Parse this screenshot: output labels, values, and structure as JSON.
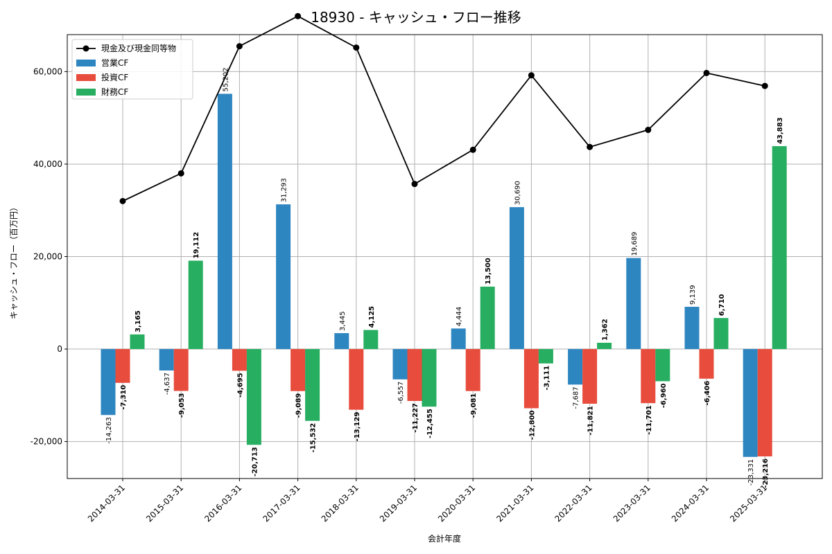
{
  "chart_data": {
    "type": "bar",
    "title": "18930 - キャッシュ・フロー推移",
    "xlabel": "会計年度",
    "ylabel": "キャッシュ・フロー（百万円）",
    "ylim": [
      -28000,
      68000
    ],
    "yticks": [
      -20000,
      0,
      20000,
      40000,
      60000
    ],
    "ytick_labels": [
      "-20,000",
      "0",
      "20,000",
      "40,000",
      "60,000"
    ],
    "grid": true,
    "legend_position": "top-left",
    "categories": [
      "2014-03-31",
      "2015-03-31",
      "2016-03-31",
      "2017-03-31",
      "2018-03-31",
      "2019-03-31",
      "2020-03-31",
      "2021-03-31",
      "2022-03-31",
      "2023-03-31",
      "2024-03-31",
      "2025-03-31"
    ],
    "series": [
      {
        "name": "営業CF",
        "type": "bar",
        "color": "#2e86c1",
        "values": [
          -14263,
          -4637,
          55202,
          31293,
          3445,
          -6557,
          4444,
          30690,
          -7687,
          19689,
          9139,
          -23331
        ],
        "labels": [
          "-14,263",
          "-4,637",
          "55,202",
          "31,293",
          "3,445",
          "-6,557",
          "4,444",
          "30,690",
          "-7,687",
          "19,689",
          "9,139",
          "-23,331"
        ]
      },
      {
        "name": "投資CF",
        "type": "bar",
        "color": "#e74c3c",
        "values": [
          -7310,
          -9053,
          -4695,
          -9089,
          -13129,
          -11227,
          -9081,
          -12800,
          -11821,
          -11701,
          -6406,
          -23216
        ],
        "labels": [
          "-7,310",
          "-9,053",
          "-4,695",
          "-9,089",
          "-13,129",
          "-11,227",
          "-9,081",
          "-12,800",
          "-11,821",
          "-11,701",
          "-6,406",
          "-23,216"
        ]
      },
      {
        "name": "財務CF",
        "type": "bar",
        "color": "#27ae60",
        "values": [
          3165,
          19112,
          -20713,
          -15532,
          4125,
          -12455,
          13500,
          -3111,
          1362,
          -6960,
          6710,
          43883
        ],
        "labels": [
          "3,165",
          "19,112",
          "-20,713",
          "-15,532",
          "4,125",
          "-12,455",
          "13,500",
          "-3,111",
          "1,362",
          "-6,960",
          "6,710",
          "43,883"
        ]
      },
      {
        "name": "現金及び現金同等物",
        "type": "line",
        "color": "#000000",
        "values": [
          32000,
          38000,
          65500,
          72000,
          65200,
          35700,
          43100,
          59200,
          43700,
          47400,
          59700,
          56900
        ]
      }
    ]
  }
}
